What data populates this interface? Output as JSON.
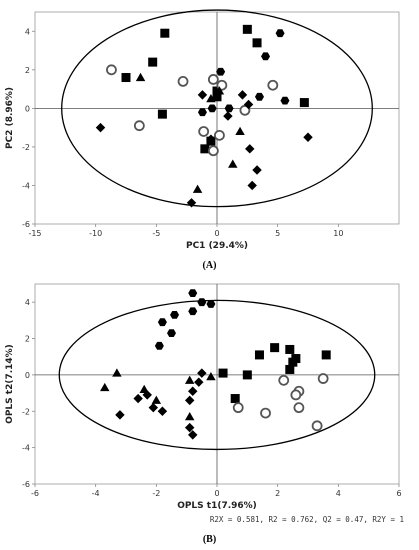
{
  "chart_data": [
    {
      "type": "scatter",
      "title": "",
      "panel_label": "(A)",
      "xlabel": "PC1 (29.4%)",
      "ylabel": "PC2 (8.96%)",
      "xlim": [
        -15,
        15
      ],
      "ylim": [
        -6,
        5
      ],
      "xticks": [
        "-15",
        "-10",
        "-5",
        "0",
        "5",
        "10"
      ],
      "yticks": [
        "4",
        "2",
        "0",
        "-2",
        "-4",
        "-6"
      ],
      "grid": false,
      "zero_lines": true,
      "confidence_ellipse": {
        "center": [
          0,
          0
        ],
        "radii": [
          12.8,
          5.1
        ]
      },
      "series": [
        {
          "marker": "square",
          "points": [
            [
              -4.3,
              3.9
            ],
            [
              -7.5,
              1.6
            ],
            [
              -5.3,
              2.4
            ],
            [
              -4.5,
              -0.3
            ],
            [
              2.5,
              4.1
            ],
            [
              3.3,
              3.4
            ],
            [
              0,
              0.9
            ],
            [
              0,
              0.6
            ],
            [
              7.2,
              0.3
            ],
            [
              -1,
              -2.1
            ],
            [
              -0.5,
              -1.7
            ]
          ]
        },
        {
          "marker": "hexagon",
          "points": [
            [
              5.2,
              3.9
            ],
            [
              4,
              2.7
            ],
            [
              0.3,
              1.9
            ],
            [
              3.5,
              0.6
            ],
            [
              5.6,
              0.4
            ],
            [
              1,
              0
            ],
            [
              -0.4,
              0
            ],
            [
              -1.2,
              -0.2
            ]
          ]
        },
        {
          "marker": "circle",
          "points": [
            [
              -8.7,
              2
            ],
            [
              -2.8,
              1.4
            ],
            [
              -0.3,
              1.5
            ],
            [
              0.4,
              1.2
            ],
            [
              4.6,
              1.2
            ],
            [
              -6.4,
              -0.9
            ],
            [
              -1.1,
              -1.2
            ],
            [
              0.2,
              -1.4
            ],
            [
              2.3,
              -0.1
            ],
            [
              -0.3,
              -2.2
            ]
          ]
        },
        {
          "marker": "diamond",
          "points": [
            [
              -1.2,
              0.7
            ],
            [
              2.1,
              0.7
            ],
            [
              2.6,
              0.2
            ],
            [
              -9.6,
              -1
            ],
            [
              0.9,
              -0.4
            ],
            [
              2.7,
              -2.1
            ],
            [
              3.3,
              -3.2
            ],
            [
              2.9,
              -4
            ],
            [
              7.5,
              -1.5
            ],
            [
              -2.1,
              -4.9
            ],
            [
              -0.5,
              -1.6
            ]
          ]
        },
        {
          "marker": "triangle",
          "points": [
            [
              -6.3,
              1.6
            ],
            [
              0.2,
              0.9
            ],
            [
              -0.5,
              0.5
            ],
            [
              1.9,
              -1.2
            ],
            [
              1.3,
              -2.9
            ],
            [
              -1.6,
              -4.2
            ]
          ]
        }
      ]
    },
    {
      "type": "scatter",
      "title": "",
      "panel_label": "(B)",
      "xlabel": "OPLS t1(7.96%)",
      "ylabel": "OPLS t2(7.14%)",
      "xlim": [
        -6,
        6
      ],
      "ylim": [
        -6,
        5
      ],
      "xticks": [
        "-6",
        "-4",
        "-2",
        "0",
        "2",
        "4",
        "6"
      ],
      "yticks": [
        "4",
        "2",
        "0",
        "-2",
        "-4",
        "-6"
      ],
      "grid": false,
      "zero_lines": true,
      "confidence_ellipse": {
        "center": [
          0,
          0
        ],
        "radii": [
          5.2,
          4.1
        ]
      },
      "stats_text": "R2X = 0.581, R2 = 0.762, Q2 = 0.47, R2Y = 1",
      "series": [
        {
          "marker": "hexagon",
          "points": [
            [
              -1.4,
              3.3
            ],
            [
              -1.8,
              2.9
            ],
            [
              -1.5,
              2.3
            ],
            [
              -0.8,
              4.5
            ],
            [
              -0.5,
              4
            ],
            [
              -0.8,
              3.5
            ],
            [
              -0.2,
              3.9
            ],
            [
              -1.9,
              1.6
            ]
          ]
        },
        {
          "marker": "triangle",
          "points": [
            [
              -3.3,
              0.1
            ],
            [
              -3.7,
              -0.7
            ],
            [
              -2.4,
              -0.8
            ],
            [
              -0.9,
              -0.3
            ],
            [
              -0.2,
              -0.1
            ],
            [
              -0.9,
              -2.3
            ],
            [
              -2,
              -1.4
            ]
          ]
        },
        {
          "marker": "diamond",
          "points": [
            [
              -3.2,
              -2.2
            ],
            [
              -2.6,
              -1.3
            ],
            [
              -2.3,
              -1.1
            ],
            [
              -2.1,
              -1.8
            ],
            [
              -1.8,
              -2
            ],
            [
              -0.8,
              -0.9
            ],
            [
              -0.9,
              -1.4
            ],
            [
              -0.9,
              -2.9
            ],
            [
              -0.8,
              -3.3
            ],
            [
              -0.6,
              -0.4
            ],
            [
              -0.5,
              0.1
            ]
          ]
        },
        {
          "marker": "square",
          "points": [
            [
              0.2,
              0.1
            ],
            [
              1.4,
              1.1
            ],
            [
              1.9,
              1.5
            ],
            [
              2.4,
              1.4
            ],
            [
              2.5,
              0.7
            ],
            [
              2.6,
              0.9
            ],
            [
              3.6,
              1.1
            ],
            [
              2.4,
              0.3
            ],
            [
              1,
              0
            ],
            [
              0.6,
              -1.3
            ]
          ]
        },
        {
          "marker": "circle",
          "points": [
            [
              0.7,
              -1.8
            ],
            [
              1.6,
              -2.1
            ],
            [
              2.2,
              -0.3
            ],
            [
              2.7,
              -0.9
            ],
            [
              2.6,
              -1.1
            ],
            [
              2.7,
              -1.8
            ],
            [
              3.3,
              -2.8
            ],
            [
              3.5,
              -0.2
            ]
          ]
        }
      ]
    }
  ]
}
